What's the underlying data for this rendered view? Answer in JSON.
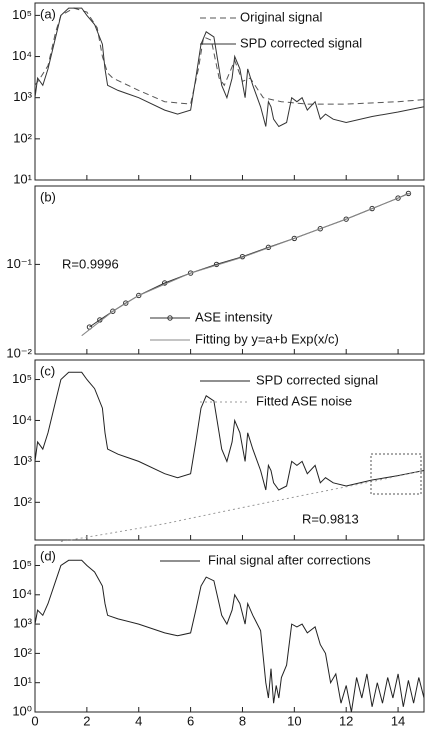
{
  "chart_data": [
    {
      "type": "line",
      "label": "(a)",
      "log": true,
      "xlim": [
        0,
        15
      ],
      "ylim": [
        10,
        200000
      ],
      "yticks": [
        {
          "value": 10,
          "label": "10¹"
        },
        {
          "value": 100,
          "label": "10²"
        },
        {
          "value": 1000,
          "label": "10³"
        },
        {
          "value": 10000,
          "label": "10⁴"
        },
        {
          "value": 100000,
          "label": "10⁵"
        }
      ],
      "series": [
        {
          "name": "Original signal",
          "color": "#555555",
          "style": "dashed",
          "x": [
            0,
            0.2,
            0.5,
            0.8,
            1.0,
            1.5,
            2.0,
            2.4,
            2.6,
            2.8,
            3,
            4,
            5,
            6,
            6.3,
            6.5,
            6.8,
            7.1,
            7.3,
            7.7,
            8,
            8.3,
            8.8,
            9.5,
            10.5,
            12,
            14,
            15
          ],
          "values": [
            2000,
            3000,
            6000,
            40000,
            100000,
            150000,
            120000,
            50000,
            10000,
            4000,
            3000,
            1500,
            800,
            700,
            5000,
            30000,
            25000,
            3000,
            2000,
            8000,
            2500,
            3000,
            1000,
            800,
            700,
            700,
            800,
            900
          ]
        },
        {
          "name": "SPD corrected signal",
          "color": "#333333",
          "style": "solid",
          "x": [
            0,
            0.1,
            0.3,
            0.5,
            0.8,
            1.0,
            1.3,
            1.8,
            2.0,
            2.3,
            2.6,
            2.7,
            2.8,
            3.2,
            4,
            5,
            5.5,
            6,
            6.2,
            6.4,
            6.6,
            6.9,
            7.1,
            7.2,
            7.4,
            7.6,
            7.7,
            7.9,
            8.1,
            8.2,
            8.4,
            8.7,
            8.9,
            9.0,
            9.1,
            9.2,
            9.4,
            9.7,
            9.9,
            10.1,
            10.3,
            10.5,
            10.8,
            11.0,
            11.2,
            11.5,
            12,
            13,
            14,
            15
          ],
          "values": [
            1000,
            3000,
            2000,
            5000,
            30000,
            100000,
            150000,
            150000,
            100000,
            60000,
            20000,
            5000,
            2000,
            1500,
            1000,
            500,
            400,
            500,
            3000,
            20000,
            40000,
            30000,
            5000,
            2000,
            1000,
            3000,
            10000,
            5000,
            1000,
            5000,
            2000,
            600,
            200,
            800,
            600,
            300,
            200,
            250,
            1000,
            800,
            1000,
            500,
            800,
            300,
            400,
            300,
            250,
            350,
            450,
            600
          ]
        }
      ]
    },
    {
      "type": "line",
      "label": "(b)",
      "log": true,
      "annotation": "R=0.9996",
      "xlim": [
        0,
        15
      ],
      "ylim": [
        0.01,
        0.75
      ],
      "yticks": [
        {
          "value": 0.01,
          "label": "10⁻²"
        },
        {
          "value": 0.1,
          "label": "10⁻¹"
        }
      ],
      "series": [
        {
          "name": "ASE intensity",
          "color": "#333333",
          "style": "solid",
          "marker": "circle",
          "x": [
            2.1,
            2.5,
            3,
            3.5,
            4,
            5,
            6,
            7,
            8,
            9,
            10,
            11,
            12,
            13,
            14,
            14.4
          ],
          "values": [
            0.02,
            0.024,
            0.03,
            0.037,
            0.045,
            0.062,
            0.08,
            0.1,
            0.122,
            0.155,
            0.195,
            0.25,
            0.32,
            0.42,
            0.55,
            0.62
          ]
        },
        {
          "name": "Fitting  by  y=a+b Exp(x/c)",
          "color": "#888888",
          "style": "solid",
          "x": [
            1.8,
            3,
            4,
            6,
            8,
            10,
            12,
            14,
            14.5
          ],
          "values": [
            0.016,
            0.03,
            0.045,
            0.08,
            0.12,
            0.195,
            0.32,
            0.55,
            0.63
          ]
        }
      ]
    },
    {
      "type": "line",
      "label": "(c)",
      "log": true,
      "annotation": "R=0.9813",
      "xlim": [
        0,
        15
      ],
      "ylim": [
        12,
        300000
      ],
      "yticks": [
        {
          "value": 100,
          "label": "10²"
        },
        {
          "value": 1000,
          "label": "10³"
        },
        {
          "value": 10000,
          "label": "10⁴"
        },
        {
          "value": 100000,
          "label": "10⁵"
        }
      ],
      "series": [
        {
          "name": "SPD corrected signal",
          "color": "#222222",
          "style": "solid",
          "x": [
            0,
            0.1,
            0.3,
            0.5,
            0.8,
            1.0,
            1.3,
            1.8,
            2.0,
            2.3,
            2.6,
            2.7,
            2.8,
            3.2,
            4,
            5,
            5.5,
            6,
            6.2,
            6.4,
            6.6,
            6.9,
            7.1,
            7.2,
            7.4,
            7.6,
            7.7,
            7.9,
            8.1,
            8.2,
            8.4,
            8.7,
            8.9,
            9.0,
            9.1,
            9.2,
            9.4,
            9.7,
            9.9,
            10.1,
            10.3,
            10.5,
            10.8,
            11.0,
            11.2,
            11.5,
            12,
            13,
            14,
            15
          ],
          "values": [
            1000,
            3000,
            2000,
            5000,
            30000,
            100000,
            150000,
            150000,
            100000,
            60000,
            20000,
            5000,
            2000,
            1500,
            1000,
            500,
            400,
            500,
            3000,
            20000,
            40000,
            30000,
            5000,
            2000,
            1000,
            3000,
            10000,
            5000,
            1000,
            5000,
            2000,
            600,
            200,
            800,
            600,
            300,
            200,
            250,
            1000,
            800,
            1000,
            500,
            800,
            300,
            400,
            300,
            250,
            350,
            450,
            600
          ]
        },
        {
          "name": "Fitted ASE noise",
          "color": "#999999",
          "style": "dotted",
          "x": [
            1,
            3,
            5,
            7,
            9,
            11,
            13,
            15
          ],
          "values": [
            11,
            18,
            30,
            55,
            100,
            180,
            320,
            600
          ]
        }
      ]
    },
    {
      "type": "line",
      "label": "(d)",
      "log": true,
      "xlim": [
        0,
        15
      ],
      "ylim": [
        1,
        500000
      ],
      "xticks": [
        0,
        2,
        4,
        6,
        8,
        10,
        12,
        14
      ],
      "yticks": [
        {
          "value": 1,
          "label": "10⁰"
        },
        {
          "value": 10,
          "label": "10¹"
        },
        {
          "value": 100,
          "label": "10²"
        },
        {
          "value": 1000,
          "label": "10³"
        },
        {
          "value": 10000,
          "label": "10⁴"
        },
        {
          "value": 100000,
          "label": "10⁵"
        }
      ],
      "series": [
        {
          "name": "Final signal after corrections",
          "color": "#222222",
          "style": "solid",
          "x": [
            0,
            0.1,
            0.3,
            0.5,
            0.8,
            1.0,
            1.3,
            1.8,
            2.0,
            2.3,
            2.6,
            2.7,
            2.8,
            3.2,
            4,
            5,
            5.5,
            6,
            6.2,
            6.4,
            6.6,
            6.9,
            7.1,
            7.2,
            7.4,
            7.6,
            7.7,
            7.9,
            8.1,
            8.2,
            8.4,
            8.7,
            8.9,
            9.0,
            9.1,
            9.2,
            9.3,
            9.4,
            9.5,
            9.7,
            9.9,
            10.1,
            10.3,
            10.5,
            10.8,
            11.0,
            11.2,
            11.4,
            11.6,
            11.8,
            12,
            12.2,
            12.4,
            12.6,
            12.8,
            13,
            13.2,
            13.4,
            13.6,
            13.8,
            14,
            14.2,
            14.4,
            14.6,
            14.8,
            15
          ],
          "values": [
            1000,
            3000,
            2000,
            5000,
            30000,
            100000,
            150000,
            150000,
            100000,
            60000,
            20000,
            5000,
            2000,
            1500,
            1000,
            500,
            400,
            500,
            3000,
            20000,
            40000,
            30000,
            5000,
            2000,
            1000,
            3000,
            10000,
            5000,
            1000,
            5000,
            2000,
            600,
            10,
            3,
            30,
            2,
            8,
            3,
            15,
            40,
            1000,
            800,
            1000,
            500,
            800,
            200,
            100,
            10,
            20,
            2,
            8,
            1,
            15,
            3,
            20,
            1.5,
            10,
            2,
            15,
            3,
            20,
            1.5,
            12,
            2,
            15,
            3
          ]
        }
      ]
    }
  ]
}
